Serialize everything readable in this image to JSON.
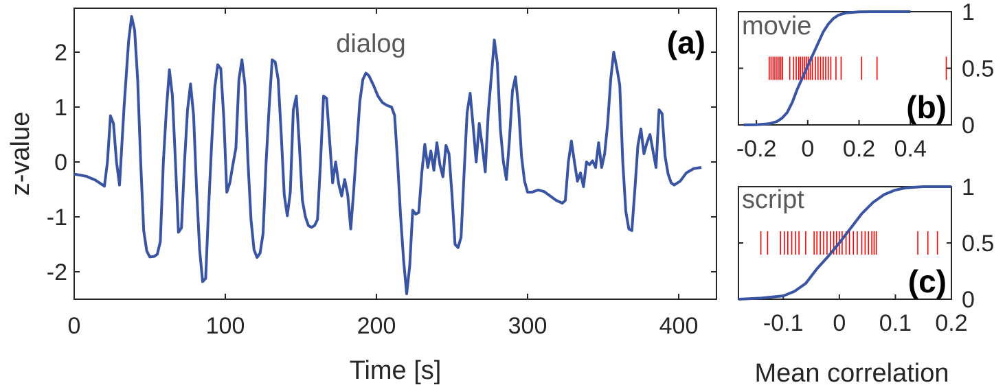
{
  "chart_data": [
    {
      "type": "line",
      "panel_label": "(a)",
      "annotation": "dialog",
      "xlabel": "Time [s]",
      "ylabel": "z-value",
      "xlim": [
        0,
        425
      ],
      "ylim": [
        -2.5,
        2.8
      ],
      "xticks": [
        0,
        100,
        200,
        300,
        400
      ],
      "yticks": [
        -2,
        -1,
        0,
        1,
        2
      ],
      "line_color": "#3a54a4",
      "points": [
        [
          0,
          -0.22
        ],
        [
          8,
          -0.26
        ],
        [
          14,
          -0.33
        ],
        [
          20,
          -0.44
        ],
        [
          22,
          0.0
        ],
        [
          24,
          0.84
        ],
        [
          26,
          0.7
        ],
        [
          28,
          0.0
        ],
        [
          30,
          -0.42
        ],
        [
          33,
          1.0
        ],
        [
          36,
          2.2
        ],
        [
          38,
          2.65
        ],
        [
          40,
          2.4
        ],
        [
          42,
          1.5
        ],
        [
          44,
          0.0
        ],
        [
          46,
          -1.25
        ],
        [
          48,
          -1.62
        ],
        [
          50,
          -1.73
        ],
        [
          53,
          -1.72
        ],
        [
          55,
          -1.68
        ],
        [
          57,
          -1.45
        ],
        [
          59,
          0.0
        ],
        [
          61,
          0.95
        ],
        [
          63,
          1.68
        ],
        [
          65,
          1.2
        ],
        [
          67,
          0.0
        ],
        [
          69,
          -1.28
        ],
        [
          71,
          -1.2
        ],
        [
          73,
          0.0
        ],
        [
          75,
          0.95
        ],
        [
          77,
          1.42
        ],
        [
          79,
          0.85
        ],
        [
          81,
          -0.5
        ],
        [
          83,
          -1.6
        ],
        [
          85,
          -2.18
        ],
        [
          87,
          -2.12
        ],
        [
          89,
          -0.8
        ],
        [
          91,
          0.35
        ],
        [
          93,
          1.35
        ],
        [
          95,
          1.77
        ],
        [
          97,
          1.7
        ],
        [
          99,
          0.8
        ],
        [
          101,
          -0.55
        ],
        [
          103,
          -0.38
        ],
        [
          105,
          -0.05
        ],
        [
          107,
          0.25
        ],
        [
          109,
          1.5
        ],
        [
          111,
          1.86
        ],
        [
          113,
          1.4
        ],
        [
          115,
          0.0
        ],
        [
          117,
          -1.05
        ],
        [
          119,
          -1.6
        ],
        [
          121,
          -1.74
        ],
        [
          123,
          -1.66
        ],
        [
          125,
          -1.3
        ],
        [
          127,
          0.0
        ],
        [
          129,
          1.0
        ],
        [
          131,
          1.86
        ],
        [
          133,
          1.82
        ],
        [
          135,
          1.5
        ],
        [
          137,
          0.5
        ],
        [
          139,
          -0.6
        ],
        [
          141,
          -0.98
        ],
        [
          143,
          -0.55
        ],
        [
          145,
          0.95
        ],
        [
          147,
          1.2
        ],
        [
          149,
          0.3
        ],
        [
          151,
          -0.7
        ],
        [
          153,
          -1.0
        ],
        [
          155,
          -1.16
        ],
        [
          157,
          -1.19
        ],
        [
          159,
          -1.16
        ],
        [
          161,
          -1.05
        ],
        [
          163,
          0.0
        ],
        [
          165,
          1.2
        ],
        [
          167,
          1.16
        ],
        [
          169,
          0.4
        ],
        [
          171,
          -0.38
        ],
        [
          173,
          0.0
        ],
        [
          175,
          -0.4
        ],
        [
          177,
          -0.62
        ],
        [
          179,
          -0.32
        ],
        [
          181,
          -0.6
        ],
        [
          183,
          -1.22
        ],
        [
          185,
          -0.5
        ],
        [
          187,
          0.3
        ],
        [
          189,
          1.1
        ],
        [
          191,
          1.5
        ],
        [
          193,
          1.62
        ],
        [
          195,
          1.57
        ],
        [
          198,
          1.4
        ],
        [
          201,
          1.2
        ],
        [
          204,
          1.08
        ],
        [
          207,
          1.03
        ],
        [
          210,
          1.0
        ],
        [
          212,
          0.85
        ],
        [
          214,
          0.0
        ],
        [
          216,
          -1.0
        ],
        [
          218,
          -1.8
        ],
        [
          220,
          -2.4
        ],
        [
          222,
          -1.9
        ],
        [
          224,
          -0.88
        ],
        [
          226,
          -0.95
        ],
        [
          228,
          -0.92
        ],
        [
          230,
          -0.2
        ],
        [
          232,
          0.32
        ],
        [
          234,
          -0.1
        ],
        [
          236,
          0.2
        ],
        [
          238,
          -0.15
        ],
        [
          240,
          0.35
        ],
        [
          242,
          -0.05
        ],
        [
          244,
          -0.27
        ],
        [
          246,
          0.3
        ],
        [
          248,
          0.15
        ],
        [
          250,
          -0.6
        ],
        [
          252,
          -1.5
        ],
        [
          254,
          -1.56
        ],
        [
          256,
          -1.37
        ],
        [
          258,
          -0.2
        ],
        [
          260,
          0.9
        ],
        [
          262,
          1.25
        ],
        [
          264,
          0.65
        ],
        [
          266,
          0.0
        ],
        [
          268,
          0.7
        ],
        [
          270,
          0.3
        ],
        [
          272,
          -0.18
        ],
        [
          274,
          0.9
        ],
        [
          276,
          1.55
        ],
        [
          278,
          2.22
        ],
        [
          280,
          1.8
        ],
        [
          282,
          0.6
        ],
        [
          284,
          0.0
        ],
        [
          286,
          -0.32
        ],
        [
          288,
          0.4
        ],
        [
          290,
          1.3
        ],
        [
          292,
          1.55
        ],
        [
          294,
          1.0
        ],
        [
          296,
          0.1
        ],
        [
          298,
          -0.35
        ],
        [
          300,
          -0.55
        ],
        [
          303,
          -0.55
        ],
        [
          307,
          -0.51
        ],
        [
          311,
          -0.54
        ],
        [
          315,
          -0.62
        ],
        [
          319,
          -0.7
        ],
        [
          323,
          -0.75
        ],
        [
          325,
          -0.7
        ],
        [
          327,
          0.0
        ],
        [
          329,
          0.38
        ],
        [
          331,
          0.0
        ],
        [
          333,
          -0.35
        ],
        [
          335,
          -0.2
        ],
        [
          337,
          -0.45
        ],
        [
          339,
          0.0
        ],
        [
          341,
          -0.05
        ],
        [
          343,
          0.02
        ],
        [
          345,
          -0.1
        ],
        [
          347,
          0.35
        ],
        [
          349,
          -0.1
        ],
        [
          351,
          0.15
        ],
        [
          353,
          0.7
        ],
        [
          355,
          1.5
        ],
        [
          357,
          2.0
        ],
        [
          359,
          1.72
        ],
        [
          361,
          1.4
        ],
        [
          363,
          0.0
        ],
        [
          365,
          -0.9
        ],
        [
          367,
          -1.22
        ],
        [
          369,
          -1.25
        ],
        [
          371,
          -0.5
        ],
        [
          373,
          0.3
        ],
        [
          375,
          0.6
        ],
        [
          377,
          0.15
        ],
        [
          379,
          0.35
        ],
        [
          381,
          0.5
        ],
        [
          383,
          0.2
        ],
        [
          385,
          -0.1
        ],
        [
          387,
          0.95
        ],
        [
          389,
          0.88
        ],
        [
          391,
          0.1
        ],
        [
          393,
          -0.22
        ],
        [
          395,
          -0.38
        ],
        [
          397,
          -0.42
        ],
        [
          401,
          -0.35
        ],
        [
          405,
          -0.2
        ],
        [
          410,
          -0.12
        ],
        [
          415,
          -0.1
        ]
      ]
    },
    {
      "type": "line",
      "panel_label": "(b)",
      "annotation": "movie",
      "xlim": [
        -0.27,
        0.56
      ],
      "ylim": [
        0,
        1.0
      ],
      "xticks": [
        -0.2,
        0,
        0.2,
        0.4
      ],
      "xticklabels": [
        "-0.2",
        "0",
        "0.2",
        "0.4"
      ],
      "yticks": [
        0,
        0.5,
        1
      ],
      "yticklabels": [
        "0",
        "0.5",
        "1"
      ],
      "line_color": "#3a54a4",
      "rug_color": "#ff0000",
      "rug_y": 0.5,
      "cdf_curve": [
        [
          -0.25,
          0.0
        ],
        [
          -0.2,
          0.002
        ],
        [
          -0.15,
          0.01
        ],
        [
          -0.12,
          0.03
        ],
        [
          -0.1,
          0.06
        ],
        [
          -0.08,
          0.11
        ],
        [
          -0.06,
          0.2
        ],
        [
          -0.04,
          0.32
        ],
        [
          -0.02,
          0.42
        ],
        [
          0.0,
          0.52
        ],
        [
          0.02,
          0.62
        ],
        [
          0.04,
          0.72
        ],
        [
          0.06,
          0.82
        ],
        [
          0.08,
          0.89
        ],
        [
          0.1,
          0.94
        ],
        [
          0.12,
          0.97
        ],
        [
          0.15,
          0.99
        ],
        [
          0.2,
          0.998
        ],
        [
          0.25,
          1.0
        ],
        [
          0.3,
          1.0
        ],
        [
          0.4,
          1.0
        ]
      ],
      "rug_values": [
        -0.15,
        -0.143,
        -0.135,
        -0.128,
        -0.12,
        -0.112,
        -0.105,
        -0.098,
        -0.07,
        -0.055,
        -0.045,
        -0.035,
        -0.028,
        -0.02,
        -0.012,
        -0.005,
        0.002,
        0.01,
        0.018,
        0.03,
        0.04,
        0.05,
        0.06,
        0.07,
        0.08,
        0.09,
        0.11,
        0.13,
        0.21,
        0.27,
        0.54
      ]
    },
    {
      "type": "line",
      "panel_label": "(c)",
      "annotation": "script",
      "xlabel": "Mean correlation",
      "xlim": [
        -0.18,
        0.2
      ],
      "ylim": [
        0,
        1.0
      ],
      "xticks": [
        -0.1,
        0,
        0.1,
        0.2
      ],
      "xticklabels": [
        "-0.1",
        "0",
        "0.1",
        "0.2"
      ],
      "yticks": [
        0,
        0.5,
        1
      ],
      "yticklabels": [
        "0",
        "0.5",
        "1"
      ],
      "line_color": "#3a54a4",
      "rug_color": "#ff0000",
      "rug_y": 0.5,
      "cdf_curve": [
        [
          -0.18,
          0.0
        ],
        [
          -0.14,
          0.01
        ],
        [
          -0.1,
          0.03
        ],
        [
          -0.08,
          0.07
        ],
        [
          -0.06,
          0.14
        ],
        [
          -0.04,
          0.27
        ],
        [
          -0.02,
          0.38
        ],
        [
          0.0,
          0.5
        ],
        [
          0.02,
          0.63
        ],
        [
          0.04,
          0.76
        ],
        [
          0.06,
          0.86
        ],
        [
          0.08,
          0.93
        ],
        [
          0.1,
          0.97
        ],
        [
          0.12,
          0.99
        ],
        [
          0.15,
          1.0
        ],
        [
          0.2,
          1.0
        ]
      ],
      "rug_values": [
        -0.14,
        -0.128,
        -0.105,
        -0.098,
        -0.092,
        -0.085,
        -0.078,
        -0.072,
        -0.06,
        -0.045,
        -0.04,
        -0.034,
        -0.028,
        -0.022,
        -0.016,
        -0.01,
        -0.005,
        0.0,
        0.005,
        0.012,
        0.018,
        0.025,
        0.032,
        0.04,
        0.046,
        0.052,
        0.058,
        0.062,
        0.066,
        0.14,
        0.158,
        0.175
      ]
    }
  ]
}
